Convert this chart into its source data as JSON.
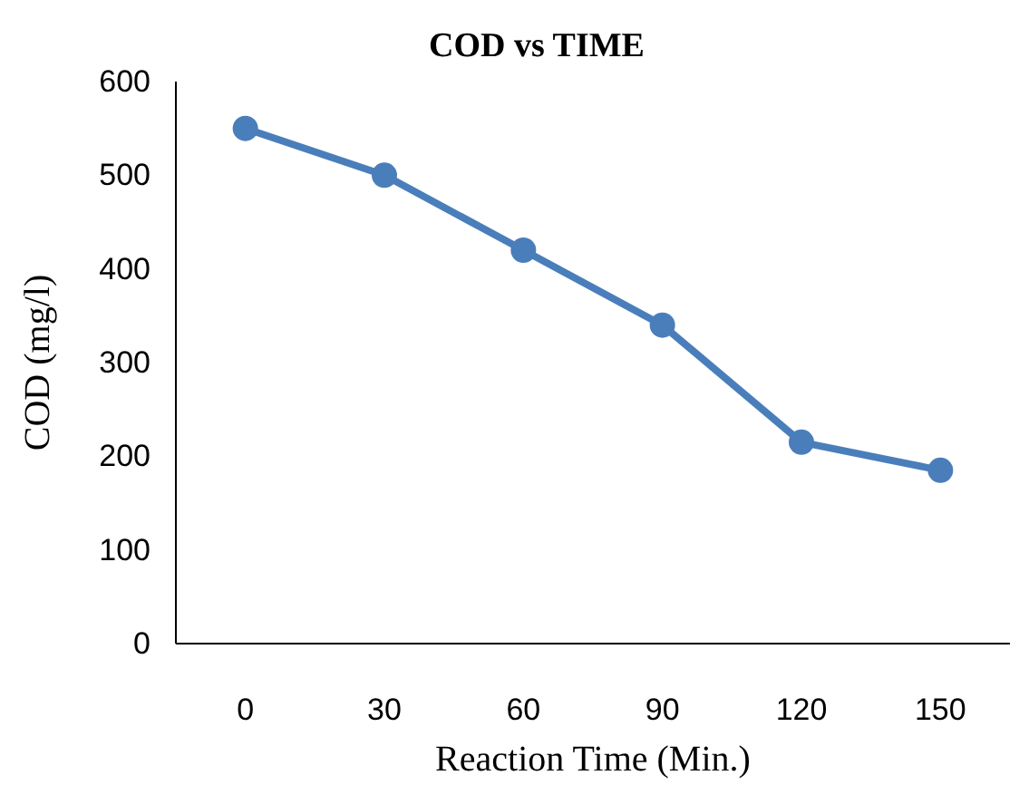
{
  "chart_data": {
    "type": "line",
    "title": "COD vs TIME",
    "xlabel": "Reaction Time (Min.)",
    "ylabel": "COD (mg/l)",
    "categories": [
      "0",
      "30",
      "60",
      "90",
      "120",
      "150"
    ],
    "series": [
      {
        "color": "#4a7ebb",
        "values": [
          550,
          500,
          420,
          340,
          215,
          185
        ]
      }
    ],
    "ylim": [
      0,
      600
    ],
    "yticks": [
      0,
      100,
      200,
      300,
      400,
      500,
      600
    ],
    "grid": false,
    "marker": "circle",
    "line_style": "solid"
  }
}
